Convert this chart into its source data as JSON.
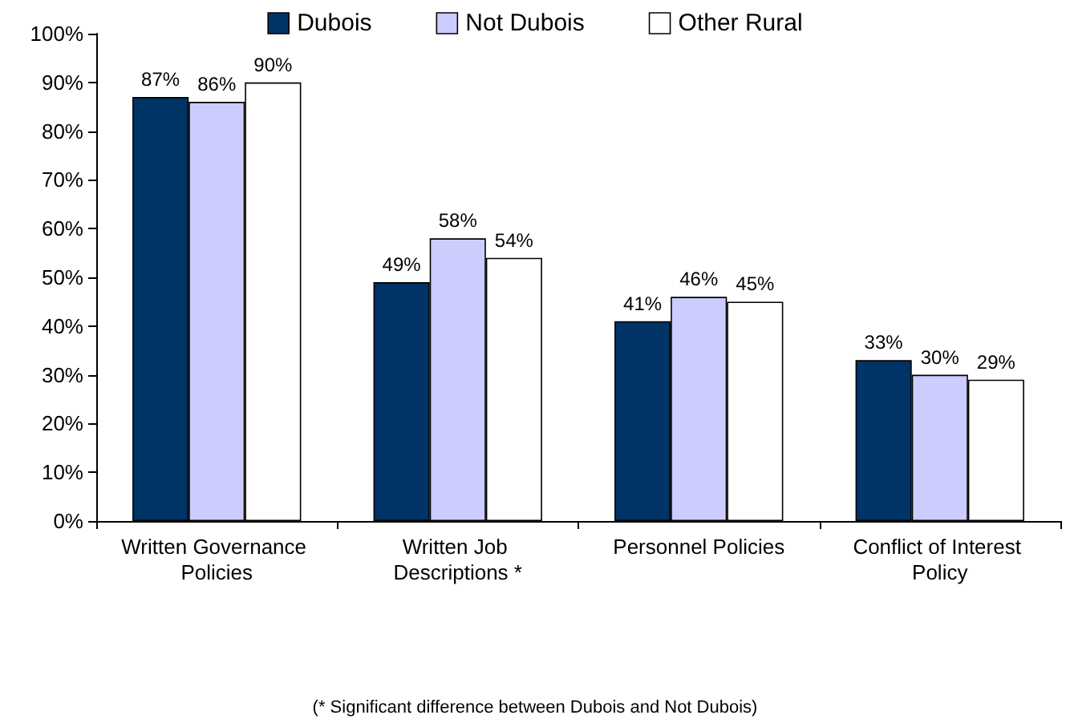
{
  "chart_data": {
    "type": "bar",
    "categories": [
      "Written Governance Policies",
      "Written Job Descriptions *",
      "Personnel Policies",
      "Conflict of Interest Policy"
    ],
    "series": [
      {
        "name": "Dubois",
        "color": "#003366",
        "values": [
          87,
          49,
          41,
          33
        ],
        "value_labels": [
          "87%",
          "49%",
          "41%",
          "33%"
        ]
      },
      {
        "name": "Not Dubois",
        "color": "#ccccff",
        "values": [
          86,
          58,
          46,
          30
        ],
        "value_labels": [
          "86%",
          "58%",
          "46%",
          "30%"
        ]
      },
      {
        "name": "Other Rural",
        "color": "#ffffff",
        "values": [
          90,
          54,
          45,
          29
        ],
        "value_labels": [
          "90%",
          "54%",
          "45%",
          "29%"
        ]
      }
    ],
    "ylim": [
      0,
      100
    ],
    "yticks": [
      {
        "value": 0,
        "label": "0%"
      },
      {
        "value": 10,
        "label": "10%"
      },
      {
        "value": 20,
        "label": "20%"
      },
      {
        "value": 30,
        "label": "30%"
      },
      {
        "value": 40,
        "label": "40%"
      },
      {
        "value": 50,
        "label": "50%"
      },
      {
        "value": 60,
        "label": "60%"
      },
      {
        "value": 70,
        "label": "70%"
      },
      {
        "value": 80,
        "label": "80%"
      },
      {
        "value": 90,
        "label": "90%"
      },
      {
        "value": 100,
        "label": "100%"
      }
    ],
    "legend": "top",
    "grid": false,
    "annotations": [
      "(* Significant difference between Dubois and Not Dubois)"
    ]
  }
}
